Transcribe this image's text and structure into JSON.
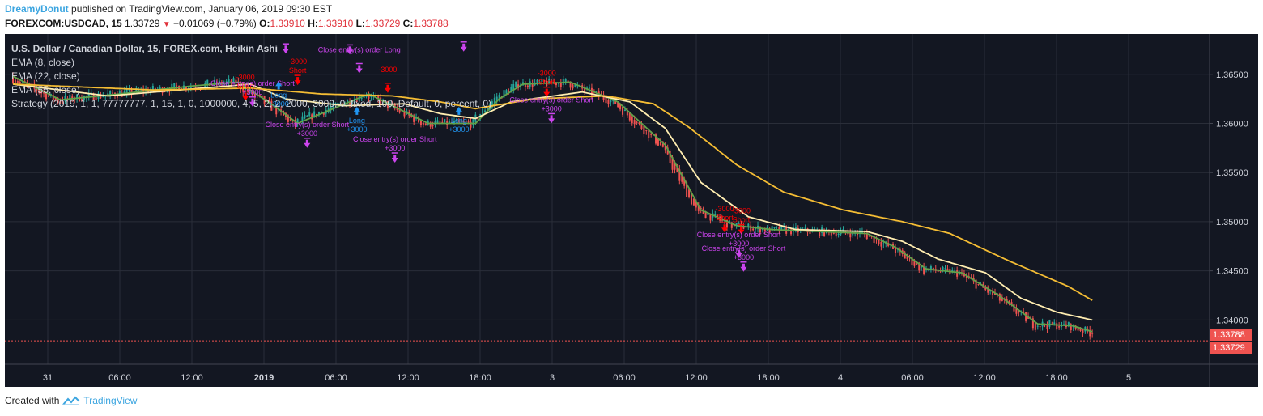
{
  "header": {
    "author": "DreamyDonut",
    "published": "published on TradingView.com, January 06, 2019 09:30 EST",
    "symbol": "FOREXCOM:USDCAD, 15",
    "last": "1.33729",
    "change": "−0.01069 (−0.79%)",
    "o_label": "O:",
    "o": "1.33910",
    "h_label": "H:",
    "h": "1.33910",
    "l_label": "L:",
    "l": "1.33729",
    "c_label": "C:",
    "c": "1.33788"
  },
  "footer": {
    "created_with": "Created with",
    "brand": "TradingView"
  },
  "colors": {
    "background": "#131722",
    "up": "#26a69a",
    "down": "#ef5350",
    "ema_fast": "#62a24a",
    "ema_mid": "#ffedb0",
    "ema_slow": "#f5bd34",
    "long": "#2196f3",
    "short": "#ff0000",
    "close": "#cc44ee",
    "price_label": "#ef5350"
  },
  "chart_data": {
    "type": "candlestick",
    "title": "U.S. Dollar / Canadian Dollar, 15, FOREX.com, Heikin Ashi",
    "legend": [
      "EMA (8, close)",
      "EMA (22, close)",
      "EMA (55, close)",
      "Strategy (2019, 1, 1, 77777777, 1, 15, 1, 0, 1000000, 4, 5, 2, 2, 2000, 3000, 0, fixed, 100, Default, 0, percent, 0)"
    ],
    "x_ticks": [
      "31",
      "06:00",
      "12:00",
      "2019",
      "06:00",
      "12:00",
      "18:00",
      "3",
      "06:00",
      "12:00",
      "18:00",
      "4",
      "06:00",
      "12:00",
      "18:00",
      "5"
    ],
    "y_ticks": [
      "1.36500",
      "1.36000",
      "1.35500",
      "1.35000",
      "1.34500",
      "1.34000"
    ],
    "ylim": [
      1.3355,
      1.3691
    ],
    "price_labels": [
      "1.33788",
      "1.33729"
    ],
    "close_price": 1.33788,
    "ema_key_points": [
      {
        "name": "EMA (8, close)",
        "points": [
          [
            0,
            1.3648
          ],
          [
            20,
            1.3624
          ],
          [
            45,
            1.363
          ],
          [
            75,
            1.3638
          ],
          [
            95,
            1.3642
          ],
          [
            110,
            1.3618
          ],
          [
            120,
            1.36
          ],
          [
            150,
            1.363
          ],
          [
            165,
            1.3612
          ],
          [
            175,
            1.36
          ],
          [
            195,
            1.36
          ],
          [
            205,
            1.3625
          ],
          [
            215,
            1.364
          ],
          [
            235,
            1.3642
          ],
          [
            255,
            1.3622
          ],
          [
            275,
            1.3578
          ],
          [
            290,
            1.3512
          ],
          [
            305,
            1.3496
          ],
          [
            320,
            1.3492
          ],
          [
            340,
            1.349
          ],
          [
            360,
            1.3488
          ],
          [
            372,
            1.3474
          ],
          [
            385,
            1.3452
          ],
          [
            400,
            1.3448
          ],
          [
            415,
            1.3426
          ],
          [
            432,
            1.3396
          ],
          [
            447,
            1.3394
          ],
          [
            455,
            1.3388
          ]
        ]
      },
      {
        "name": "EMA (22, close)",
        "points": [
          [
            0,
            1.364
          ],
          [
            40,
            1.3628
          ],
          [
            80,
            1.3636
          ],
          [
            100,
            1.364
          ],
          [
            115,
            1.3625
          ],
          [
            140,
            1.3618
          ],
          [
            165,
            1.362
          ],
          [
            180,
            1.361
          ],
          [
            195,
            1.3605
          ],
          [
            210,
            1.3622
          ],
          [
            240,
            1.3632
          ],
          [
            260,
            1.3622
          ],
          [
            275,
            1.3595
          ],
          [
            290,
            1.354
          ],
          [
            310,
            1.3505
          ],
          [
            330,
            1.3492
          ],
          [
            360,
            1.349
          ],
          [
            375,
            1.348
          ],
          [
            390,
            1.3462
          ],
          [
            410,
            1.3448
          ],
          [
            425,
            1.3422
          ],
          [
            440,
            1.3408
          ],
          [
            455,
            1.34
          ]
        ]
      },
      {
        "name": "EMA (55, close)",
        "points": [
          [
            0,
            1.364
          ],
          [
            60,
            1.3634
          ],
          [
            100,
            1.3636
          ],
          [
            130,
            1.363
          ],
          [
            160,
            1.3628
          ],
          [
            180,
            1.3622
          ],
          [
            195,
            1.3615
          ],
          [
            220,
            1.3625
          ],
          [
            250,
            1.3628
          ],
          [
            270,
            1.362
          ],
          [
            285,
            1.3596
          ],
          [
            305,
            1.3558
          ],
          [
            325,
            1.353
          ],
          [
            350,
            1.3512
          ],
          [
            375,
            1.35
          ],
          [
            395,
            1.3488
          ],
          [
            420,
            1.346
          ],
          [
            445,
            1.3434
          ],
          [
            455,
            1.342
          ]
        ]
      }
    ],
    "signals": [
      {
        "bar": 98,
        "price": 1.3628,
        "side": "short",
        "texts": [
          "-3000",
          "Short"
        ]
      },
      {
        "bar": 101,
        "price": 1.3622,
        "side": "close",
        "texts": [
          "Close entry(s) order Short",
          "+3000"
        ]
      },
      {
        "bar": 112,
        "price": 1.3638,
        "side": "long",
        "texts": [
          "Long",
          "+3000"
        ]
      },
      {
        "bar": 115,
        "price": 1.3676,
        "side": "close",
        "texts": [
          "Close entry(s) order Long",
          ""
        ]
      },
      {
        "bar": 120,
        "price": 1.3644,
        "side": "short",
        "texts": [
          "-3000",
          "Short"
        ]
      },
      {
        "bar": 124,
        "price": 1.358,
        "side": "close",
        "texts": [
          "Close entry(s) order Short",
          "+3000"
        ]
      },
      {
        "bar": 142,
        "price": 1.3675,
        "side": "close",
        "texts": [
          "-3000",
          ""
        ]
      },
      {
        "bar": 146,
        "price": 1.3656,
        "side": "close",
        "texts": [
          "Close entry(s) order Long",
          ""
        ]
      },
      {
        "bar": 145,
        "price": 1.3612,
        "side": "long",
        "texts": [
          "Long",
          "+3000"
        ]
      },
      {
        "bar": 158,
        "price": 1.3636,
        "side": "short",
        "texts": [
          "-3000",
          ""
        ]
      },
      {
        "bar": 161,
        "price": 1.3565,
        "side": "close",
        "texts": [
          "Close entry(s) order Short",
          "+3000"
        ]
      },
      {
        "bar": 190,
        "price": 1.3678,
        "side": "close",
        "texts": [
          "Close entry(s) order Long",
          ""
        ]
      },
      {
        "bar": 188,
        "price": 1.3612,
        "side": "long",
        "texts": [
          "Long",
          "+3000"
        ]
      },
      {
        "bar": 225,
        "price": 1.3632,
        "side": "short",
        "texts": [
          "-3000",
          "Short"
        ]
      },
      {
        "bar": 227,
        "price": 1.3605,
        "side": "close",
        "texts": [
          "Close entry(s) order Short",
          "+3000"
        ]
      },
      {
        "bar": 300,
        "price": 1.3494,
        "side": "short",
        "texts": [
          "-3000",
          "Short"
        ]
      },
      {
        "bar": 307,
        "price": 1.3492,
        "side": "short",
        "texts": [
          "-3000",
          "Short"
        ]
      },
      {
        "bar": 306,
        "price": 1.3468,
        "side": "close",
        "texts": [
          "Close entry(s) order Short",
          "+3000"
        ]
      },
      {
        "bar": 308,
        "price": 1.3454,
        "side": "close",
        "texts": [
          "Close entry(s) order Short",
          "+3000"
        ]
      }
    ]
  }
}
